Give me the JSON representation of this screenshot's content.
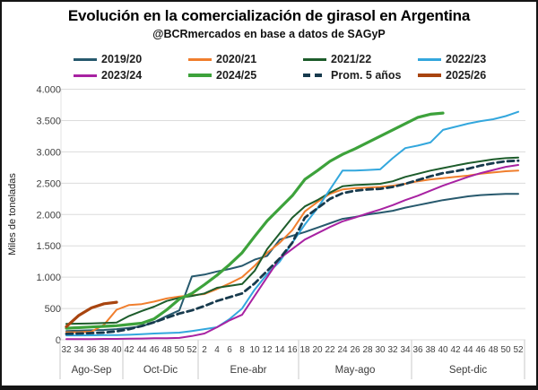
{
  "header": {
    "title": "Evolución en la comercialización de girasol en Argentina",
    "subtitle": "@BCRmercados en base a datos de SAGyP"
  },
  "chart_data": {
    "type": "line",
    "title": "Evolución en la comercialización de girasol en Argentina",
    "subtitle": "@BCRmercados en base a datos de SAGyP",
    "ylabel": "Miles de toneladas",
    "xlabel": "",
    "ylim": [
      0,
      4000
    ],
    "grid": "horizontal",
    "legend_position": "top",
    "y_ticks": [
      0,
      500,
      1000,
      1500,
      2000,
      2500,
      3000,
      3500,
      4000
    ],
    "y_tick_labels": [
      "0",
      "500",
      "1.000",
      "1.500",
      "2.000",
      "2.500",
      "3.000",
      "3.500",
      "4.000"
    ],
    "x_tick_labels": [
      "32",
      "34",
      "36",
      "38",
      "40",
      "42",
      "44",
      "46",
      "48",
      "50",
      "52",
      "2",
      "4",
      "6",
      "8",
      "10",
      "12",
      "14",
      "16",
      "18",
      "20",
      "22",
      "24",
      "26",
      "28",
      "30",
      "32",
      "34",
      "36",
      "38",
      "40",
      "42",
      "44",
      "46",
      "48",
      "50",
      "52"
    ],
    "period_groups": [
      {
        "label": "Ago-Sep",
        "from": 0,
        "to": 4
      },
      {
        "label": "Oct-Dic",
        "from": 5,
        "to": 10
      },
      {
        "label": "Ene-abr",
        "from": 11,
        "to": 18
      },
      {
        "label": "May-ago",
        "from": 19,
        "to": 27
      },
      {
        "label": "Sept-dic",
        "from": 28,
        "to": 36
      }
    ],
    "legend_order": [
      "2019/20",
      "2020/21",
      "2021/22",
      "2022/23",
      "2023/24",
      "2024/25",
      "Prom. 5 años",
      "2025/26"
    ],
    "series": [
      {
        "name": "2019/20",
        "color": "#27596d",
        "width": 2,
        "dash": null,
        "values": [
          140,
          148,
          152,
          158,
          170,
          190,
          215,
          280,
          380,
          470,
          1010,
          1040,
          1090,
          1130,
          1180,
          1280,
          1340,
          1600,
          1660,
          1720,
          1790,
          1860,
          1930,
          1960,
          2000,
          2030,
          2060,
          2110,
          2150,
          2190,
          2230,
          2260,
          2290,
          2310,
          2320,
          2330,
          2330
        ]
      },
      {
        "name": "2020/21",
        "color": "#f07e2d",
        "width": 2,
        "dash": null,
        "values": [
          120,
          122,
          130,
          240,
          480,
          555,
          570,
          610,
          660,
          690,
          710,
          730,
          810,
          900,
          1000,
          1180,
          1390,
          1550,
          1750,
          2050,
          2200,
          2330,
          2400,
          2420,
          2430,
          2440,
          2460,
          2490,
          2530,
          2560,
          2580,
          2600,
          2620,
          2650,
          2670,
          2690,
          2700
        ]
      },
      {
        "name": "2021/22",
        "color": "#1d5c2b",
        "width": 2,
        "dash": null,
        "values": [
          255,
          258,
          262,
          268,
          275,
          380,
          460,
          530,
          620,
          670,
          700,
          740,
          830,
          860,
          890,
          1100,
          1450,
          1700,
          1950,
          2130,
          2230,
          2350,
          2450,
          2470,
          2480,
          2490,
          2530,
          2600,
          2650,
          2700,
          2740,
          2780,
          2820,
          2850,
          2880,
          2900,
          2910
        ]
      },
      {
        "name": "2022/23",
        "color": "#33a7dd",
        "width": 2,
        "dash": null,
        "values": [
          70,
          70,
          72,
          74,
          75,
          80,
          90,
          100,
          108,
          115,
          140,
          170,
          200,
          330,
          500,
          800,
          1050,
          1250,
          1550,
          1840,
          2100,
          2400,
          2700,
          2700,
          2710,
          2720,
          2900,
          3060,
          3100,
          3150,
          3350,
          3400,
          3450,
          3490,
          3520,
          3570,
          3640
        ]
      },
      {
        "name": "2023/24",
        "color": "#a822a2",
        "width": 2,
        "dash": null,
        "values": [
          10,
          10,
          12,
          14,
          15,
          18,
          20,
          24,
          26,
          30,
          60,
          100,
          200,
          310,
          400,
          700,
          1000,
          1300,
          1450,
          1600,
          1700,
          1800,
          1890,
          1950,
          2020,
          2080,
          2150,
          2230,
          2300,
          2380,
          2460,
          2530,
          2600,
          2660,
          2710,
          2760,
          2790
        ]
      },
      {
        "name": "2024/25",
        "color": "#3da23b",
        "width": 3.2,
        "dash": null,
        "values": [
          185,
          195,
          205,
          215,
          225,
          245,
          265,
          335,
          480,
          650,
          740,
          880,
          1030,
          1200,
          1390,
          1650,
          1900,
          2100,
          2300,
          2560,
          2700,
          2850,
          2960,
          3050,
          3150,
          3250,
          3350,
          3450,
          3550,
          3600,
          3620,
          null,
          null,
          null,
          null,
          null,
          null
        ]
      },
      {
        "name": "Prom. 5 años",
        "color": "#173a4d",
        "width": 2.8,
        "dash": "7 4.5",
        "values": [
          95,
          100,
          107,
          116,
          135,
          170,
          220,
          280,
          350,
          420,
          470,
          540,
          620,
          680,
          740,
          900,
          1100,
          1300,
          1550,
          1950,
          2100,
          2250,
          2340,
          2380,
          2400,
          2410,
          2440,
          2490,
          2550,
          2610,
          2660,
          2690,
          2730,
          2780,
          2820,
          2850,
          2860
        ]
      },
      {
        "name": "2025/26",
        "color": "#a8440f",
        "width": 3.2,
        "dash": null,
        "values": [
          210,
          390,
          510,
          575,
          600,
          null,
          null,
          null,
          null,
          null,
          null,
          null,
          null,
          null,
          null,
          null,
          null,
          null,
          null,
          null,
          null,
          null,
          null,
          null,
          null,
          null,
          null,
          null,
          null,
          null,
          null,
          null,
          null,
          null,
          null,
          null,
          null
        ]
      }
    ]
  }
}
